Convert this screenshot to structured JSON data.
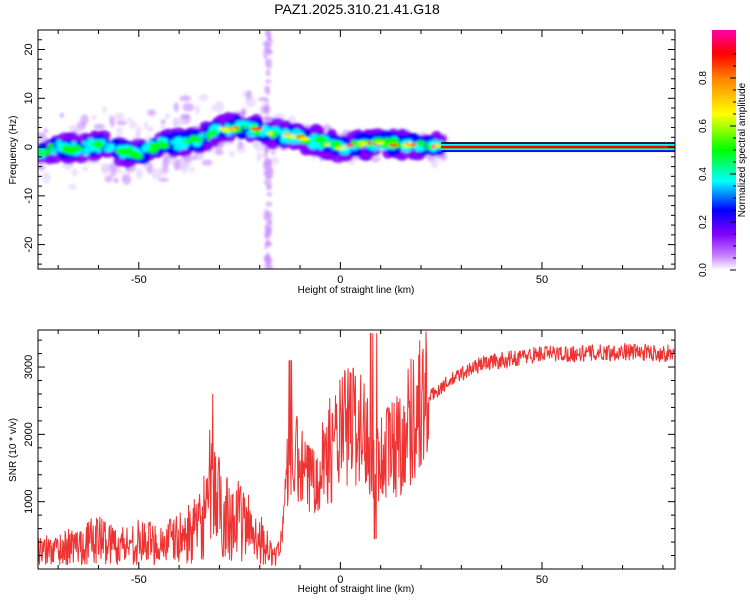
{
  "title": "PAZ1.2025.310.21.41.G18",
  "chart_data": [
    {
      "type": "heatmap",
      "xlabel": "Height of straight line (km)",
      "ylabel": "Frequency (Hz)",
      "xlim": [
        -75,
        83
      ],
      "ylim": [
        -25,
        24
      ],
      "xticks": [
        -50,
        0,
        50
      ],
      "yticks": [
        -20,
        -10,
        0,
        10,
        20
      ],
      "colorbar": {
        "label": "Normalized spectral amplitude",
        "range": [
          0,
          1
        ],
        "ticks": [
          0.0,
          0.2,
          0.4,
          0.6,
          0.8
        ],
        "colors": [
          "#ffffff",
          "#c880ff",
          "#8000ff",
          "#0000ff",
          "#00ffff",
          "#00ff00",
          "#ffff00",
          "#ff0000",
          "#ff00aa"
        ]
      },
      "tone_trace": [
        {
          "x": -75,
          "freq": -1.0
        },
        {
          "x": -70,
          "freq": 0.0
        },
        {
          "x": -65,
          "freq": -0.5
        },
        {
          "x": -60,
          "freq": 0.5
        },
        {
          "x": -55,
          "freq": -0.5
        },
        {
          "x": -50,
          "freq": -1.5
        },
        {
          "x": -45,
          "freq": 0.5
        },
        {
          "x": -40,
          "freq": 1.0
        },
        {
          "x": -35,
          "freq": 1.5
        },
        {
          "x": -30,
          "freq": 3.5
        },
        {
          "x": -25,
          "freq": 4.0
        },
        {
          "x": -20,
          "freq": 3.5
        },
        {
          "x": -15,
          "freq": 2.5
        },
        {
          "x": -10,
          "freq": 2.0
        },
        {
          "x": -5,
          "freq": 1.0
        },
        {
          "x": 0,
          "freq": 0.0
        },
        {
          "x": 5,
          "freq": 0.5
        },
        {
          "x": 10,
          "freq": 1.0
        },
        {
          "x": 15,
          "freq": 0.5
        },
        {
          "x": 20,
          "freq": 0.5
        },
        {
          "x": 25,
          "freq": 0.0
        },
        {
          "x": 83,
          "freq": 0.0
        }
      ]
    },
    {
      "type": "line",
      "xlabel": "Height of straight line (km)",
      "ylabel": "SNR (10 * v/v)",
      "xlim": [
        -75,
        83
      ],
      "ylim": [
        0,
        3550
      ],
      "xticks": [
        -50,
        0,
        50
      ],
      "yticks": [
        1000,
        2000,
        3000
      ],
      "color": "#ee3333",
      "series": [
        {
          "values": [
            {
              "x": -75,
              "y": 250
            },
            {
              "x": -70,
              "y": 300
            },
            {
              "x": -65,
              "y": 350
            },
            {
              "x": -60,
              "y": 450
            },
            {
              "x": -55,
              "y": 350
            },
            {
              "x": -50,
              "y": 400
            },
            {
              "x": -45,
              "y": 380
            },
            {
              "x": -40,
              "y": 450
            },
            {
              "x": -35,
              "y": 600
            },
            {
              "x": -32,
              "y": 1200
            },
            {
              "x": -30,
              "y": 900
            },
            {
              "x": -25,
              "y": 700
            },
            {
              "x": -22,
              "y": 600
            },
            {
              "x": -19,
              "y": 400
            },
            {
              "x": -17,
              "y": 200
            },
            {
              "x": -15,
              "y": 300
            },
            {
              "x": -13,
              "y": 1500
            },
            {
              "x": -11,
              "y": 1600
            },
            {
              "x": -8,
              "y": 1300
            },
            {
              "x": -5,
              "y": 1600
            },
            {
              "x": -2,
              "y": 1800
            },
            {
              "x": 0,
              "y": 2000
            },
            {
              "x": 3,
              "y": 2200
            },
            {
              "x": 6,
              "y": 2000
            },
            {
              "x": 8,
              "y": 1800
            },
            {
              "x": 10,
              "y": 1600
            },
            {
              "x": 12,
              "y": 1800
            },
            {
              "x": 15,
              "y": 1900
            },
            {
              "x": 18,
              "y": 2300
            },
            {
              "x": 21,
              "y": 2500
            },
            {
              "x": 25,
              "y": 2700
            },
            {
              "x": 30,
              "y": 2900
            },
            {
              "x": 35,
              "y": 3050
            },
            {
              "x": 40,
              "y": 3100
            },
            {
              "x": 45,
              "y": 3150
            },
            {
              "x": 50,
              "y": 3200
            },
            {
              "x": 60,
              "y": 3200
            },
            {
              "x": 70,
              "y": 3230
            },
            {
              "x": 83,
              "y": 3200
            }
          ]
        }
      ]
    }
  ]
}
